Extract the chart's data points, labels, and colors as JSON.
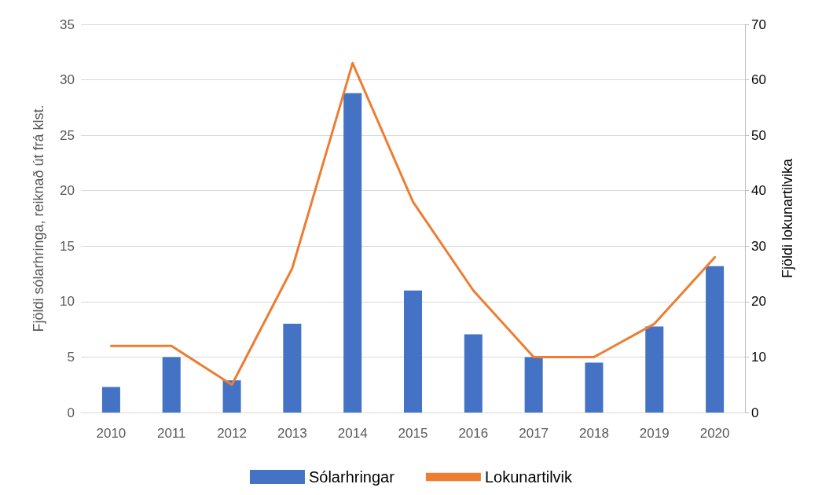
{
  "chart_data": {
    "type": "bar",
    "categories": [
      "2010",
      "2011",
      "2012",
      "2013",
      "2014",
      "2015",
      "2016",
      "2017",
      "2018",
      "2019",
      "2020"
    ],
    "series": [
      {
        "name": "Sólarhringar",
        "color": "#4472c4",
        "values": [
          2.3,
          5.0,
          2.9,
          8.0,
          28.8,
          11.0,
          7.05,
          5.0,
          4.5,
          7.75,
          13.2
        ]
      },
      {
        "name": "Lokunartilvik",
        "color": "#ed7d31",
        "type": "line",
        "axis": "y2",
        "values": [
          12,
          12,
          5,
          26,
          63,
          38,
          22,
          10,
          10,
          16,
          28
        ]
      }
    ],
    "ylabel": "Fjöldi sólarhringa, reiknað út frá klst.",
    "y2label": "Fjöldi lokunartilvika",
    "ylim": [
      0,
      35
    ],
    "yticks": [
      0,
      5,
      10,
      15,
      20,
      25,
      30,
      35
    ],
    "y2lim": [
      0,
      70
    ],
    "y2ticks": [
      0,
      10,
      20,
      30,
      40,
      50,
      60,
      70
    ],
    "grid": "y",
    "legend": "bottom",
    "marker": "none",
    "line_style": "solid"
  }
}
